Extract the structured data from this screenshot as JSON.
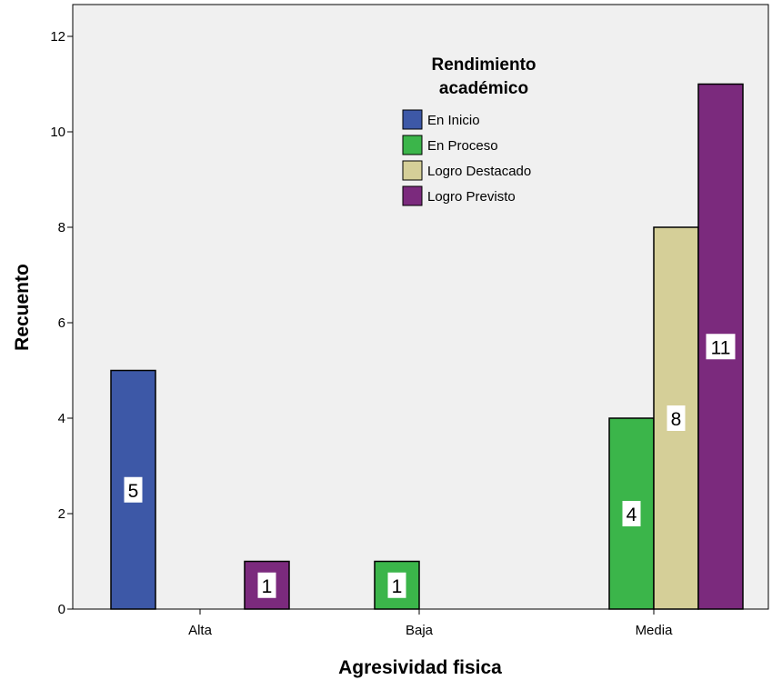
{
  "chart_data": {
    "type": "bar",
    "categories": [
      "Alta",
      "Baja",
      "Media"
    ],
    "xlabel": "Agresividad fisica",
    "ylabel": "Recuento",
    "ylim": [
      0,
      12
    ],
    "yticks": [
      0,
      2,
      4,
      6,
      8,
      10,
      12
    ],
    "grid": false,
    "legend": {
      "title_lines": [
        "Rendimiento",
        "académico"
      ],
      "placement": "top-center"
    },
    "series": [
      {
        "name": "En Inicio",
        "color": "#3d58a7",
        "values": [
          5,
          0,
          0
        ]
      },
      {
        "name": "En Proceso",
        "color": "#3bb54a",
        "values": [
          0,
          1,
          4
        ]
      },
      {
        "name": "Logro Destacado",
        "color": "#d5cf98",
        "values": [
          0,
          0,
          8
        ]
      },
      {
        "name": "Logro Previsto",
        "color": "#7b2a7d",
        "values": [
          1,
          0,
          11
        ]
      }
    ],
    "plot_background": "#f0f0f0"
  }
}
